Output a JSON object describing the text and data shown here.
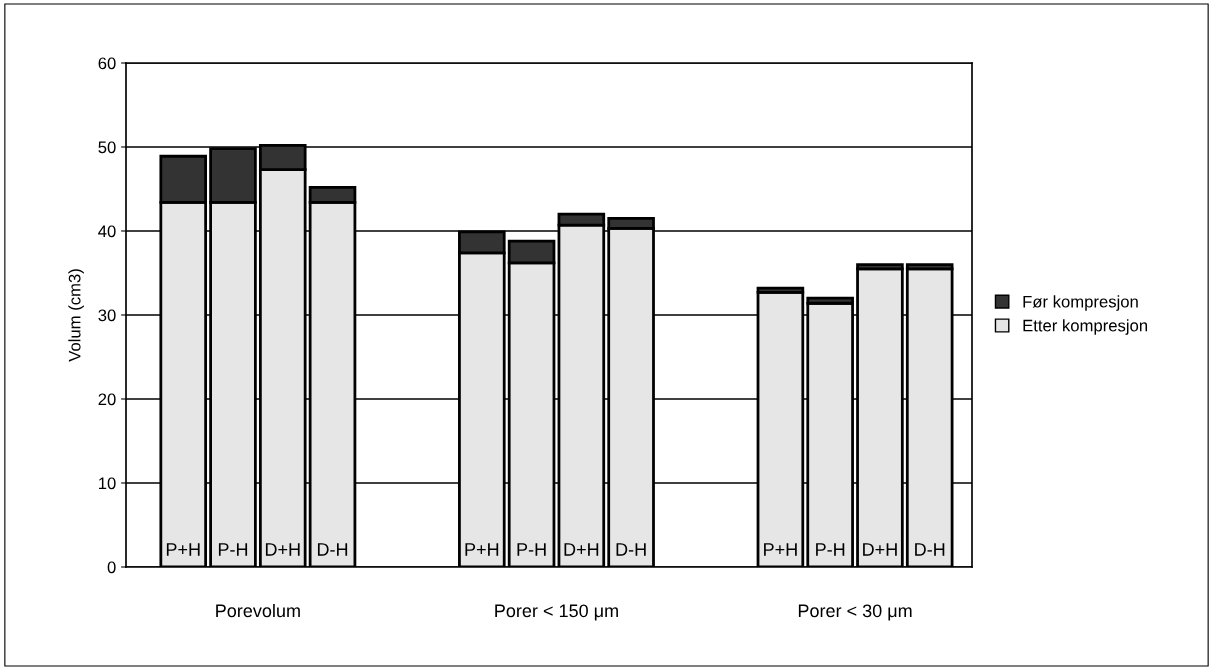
{
  "chart_data": {
    "type": "bar",
    "stacked": true,
    "ylabel": "Volum (cm3)",
    "categories": [
      "P+H",
      "P-H",
      "D+H",
      "D-H",
      null,
      null,
      "P+H",
      "P-H",
      "D+H",
      "D-H",
      null,
      null,
      "P+H",
      "P-H",
      "D+H",
      "D-H"
    ],
    "series": [
      {
        "name": "Etter kompresjon",
        "color": "#e6e6e6",
        "values": [
          43.4,
          43.4,
          47.3,
          43.4,
          null,
          null,
          37.4,
          36.2,
          40.7,
          40.3,
          null,
          null,
          32.7,
          31.4,
          35.5,
          35.5
        ]
      },
      {
        "name": "Før kompresjon",
        "color": "#333333",
        "values": [
          5.5,
          6.4,
          2.9,
          1.8,
          null,
          null,
          2.5,
          2.6,
          1.3,
          1.2,
          null,
          null,
          0.5,
          0.6,
          0.5,
          0.5
        ]
      }
    ],
    "annotations": [
      "Porevolum",
      "Porer < 150 μm",
      "Porer < 30 μm"
    ],
    "ylim": [
      0,
      60
    ],
    "yticks": [
      0,
      10,
      20,
      30,
      40,
      50,
      60
    ],
    "grid": "y",
    "legend": "right"
  }
}
